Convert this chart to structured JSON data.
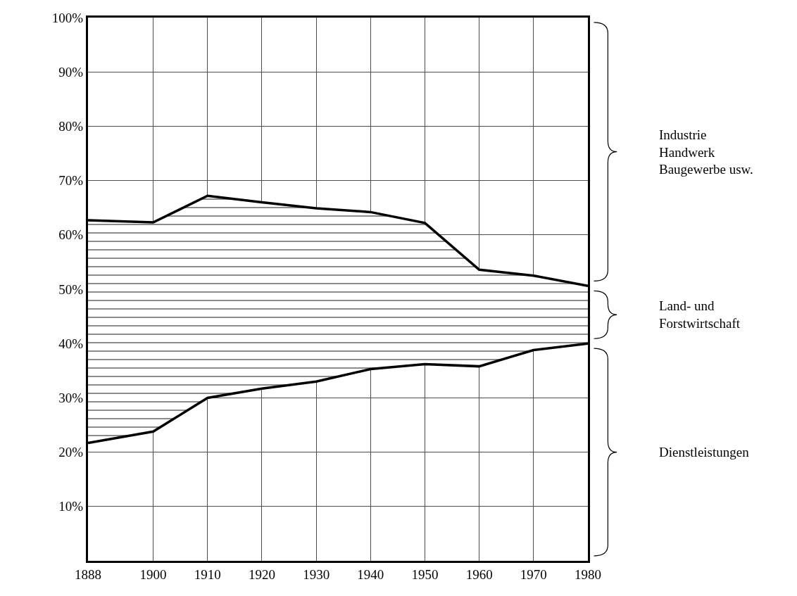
{
  "chart_data": {
    "type": "area",
    "stacked": true,
    "x": [
      1888,
      1900,
      1910,
      1920,
      1930,
      1940,
      1950,
      1960,
      1970,
      1980
    ],
    "series": [
      {
        "name": "Dienstleistungen",
        "color": "#ffffff",
        "values": [
          21.7,
          23.8,
          30,
          31.7,
          33,
          35.3,
          36.2,
          35.8,
          38.8,
          40
        ]
      },
      {
        "name": "Land- und\nForstwirtschaft",
        "color": "#000000",
        "values": [
          41,
          38.5,
          37.2,
          34.3,
          31.9,
          28.9,
          26,
          17.8,
          13.7,
          10.6
        ]
      },
      {
        "name": "Industrie\nHandwerk\nBaugewerbe usw.",
        "color": "#ffffff",
        "values": [
          37.3,
          37.7,
          32.8,
          34,
          35.1,
          35.8,
          37.8,
          46.4,
          47.5,
          49.4
        ]
      }
    ],
    "xlim": [
      1888,
      1980
    ],
    "xticks": [
      1888,
      1900,
      1910,
      1920,
      1930,
      1940,
      1950,
      1960,
      1970,
      1980
    ],
    "ylim": [
      0,
      100
    ],
    "yticks": [
      {
        "value": 10,
        "label": "10%"
      },
      {
        "value": 20,
        "label": "20%"
      },
      {
        "value": 30,
        "label": "30%"
      },
      {
        "value": 40,
        "label": "40%"
      },
      {
        "value": 50,
        "label": "50%"
      },
      {
        "value": 60,
        "label": "60%"
      },
      {
        "value": 70,
        "label": "70%"
      },
      {
        "value": 80,
        "label": "80%"
      },
      {
        "value": 90,
        "label": "90%"
      },
      {
        "value": 100,
        "label": "100%"
      }
    ],
    "grid": true,
    "legend": false
  }
}
